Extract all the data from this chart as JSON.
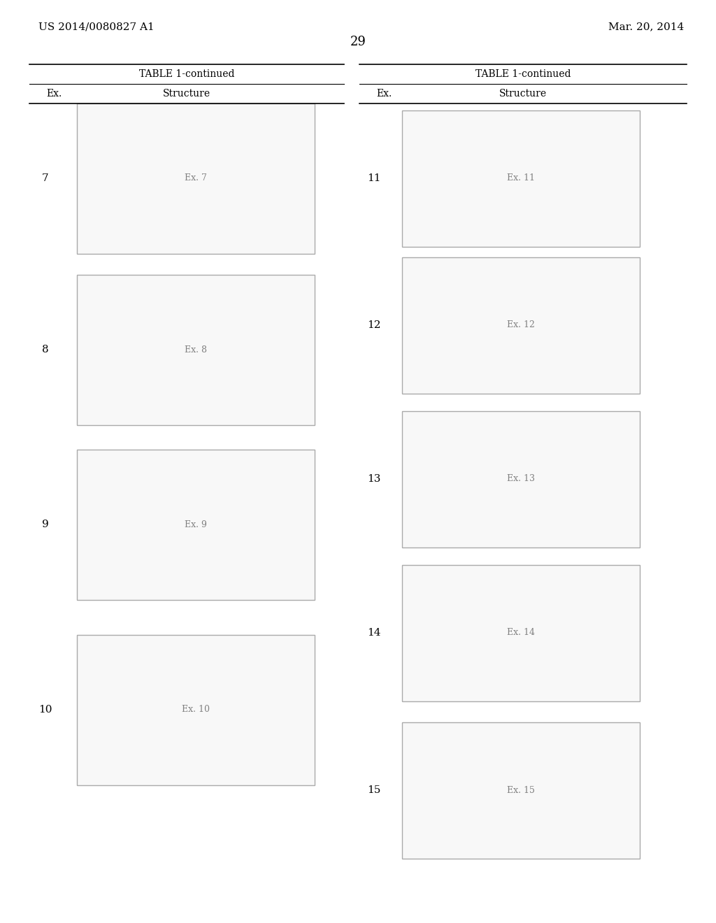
{
  "page_number": "29",
  "patent_number": "US 2014/0080827 A1",
  "date": "Mar. 20, 2014",
  "table_title": "TABLE 1-continued",
  "background_color": "#ffffff",
  "text_color": "#000000",
  "smiles": {
    "7": "O=C1c2ccccc2OC(Cn2cnc3ccccc32)=C1c1ccccc1",
    "8": "O=C1c2ccccc2OC(Cn2cnc3c(C)cccc32)=C1c1ccccc1",
    "9": "O=C1c2ccccc2OC(Cn2cncnc2Cl)=C1c1ccccc1",
    "10": "O=C1c2cc(Br)ccc2OC(Cn2cncnc2Cl)=C1c1ccccc1",
    "11": "O=C1c2ccccc2OC(CSc2ncnc3[nH]cnc23)=C1c1ccccc1",
    "12": "O=C1c2ccccc2OC(Cn2ccnc2)=C1c1ccccc1",
    "13": "O=C1c2cc(Br)ccc2OC(CSc2ncnc3[nH]cnc23)=C1c1ccccc1",
    "14": "O=C1c2cc(Br)ccc2OC(Cn2cncnc2N)=C1c1ccccc1",
    "15": "O=C1c2cc(Br)ccc2OC(Cn2cncnc2N)=C1c1cc(F)ccc1"
  },
  "left_examples": [
    "7",
    "8",
    "9",
    "10"
  ],
  "right_examples": [
    "11",
    "12",
    "13",
    "14",
    "15"
  ]
}
